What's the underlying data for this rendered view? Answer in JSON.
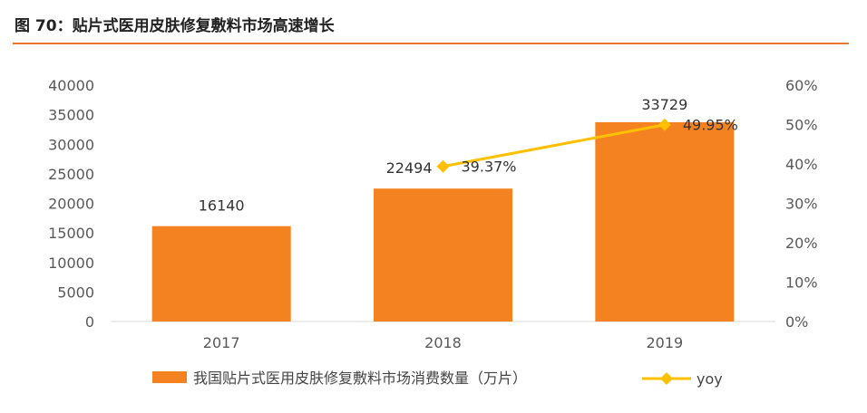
{
  "title": "图 70：贴片式医用皮肤修复敷料市场高速增长",
  "colors": {
    "bar": "#f58220",
    "line": "#ffc000",
    "accent": "#e8792a"
  },
  "chart_data": {
    "type": "bar",
    "categories": [
      "2017",
      "2018",
      "2019"
    ],
    "series": [
      {
        "name": "我国贴片式医用皮肤修复敷料市场消费数量（万片）",
        "type": "bar",
        "axis": "left",
        "values": [
          16140,
          22494,
          33729
        ],
        "labels": [
          "16140",
          "22494",
          "33729"
        ]
      },
      {
        "name": "yoy",
        "type": "line",
        "axis": "right",
        "values": [
          null,
          39.37,
          49.95
        ],
        "labels": [
          "",
          "39.37%",
          "49.95%"
        ]
      }
    ],
    "ylim": [
      0,
      40000
    ],
    "yticks": [
      "0",
      "5000",
      "10000",
      "15000",
      "20000",
      "25000",
      "30000",
      "35000",
      "40000"
    ],
    "y2lim": [
      0,
      60
    ],
    "y2ticks": [
      "0%",
      "10%",
      "20%",
      "30%",
      "40%",
      "50%",
      "60%"
    ],
    "grid": false,
    "legend_position": "bottom"
  }
}
